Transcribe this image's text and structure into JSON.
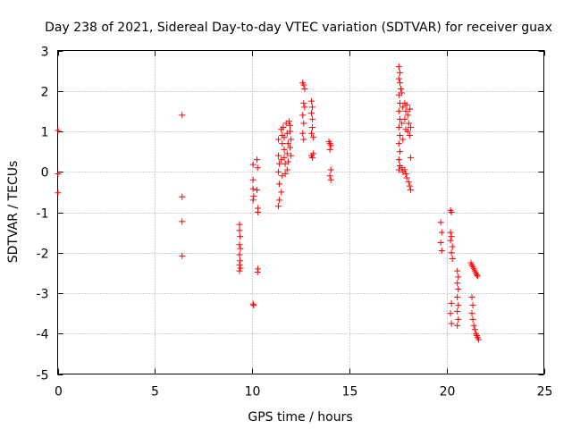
{
  "chart_data": {
    "type": "scatter",
    "title": "Day 238 of 2021, Sidereal Day-to-day VTEC variation (SDTVAR) for receiver guax",
    "xlabel": "GPS time / hours",
    "ylabel": "SDTVAR / TECUs",
    "xlim": [
      0,
      25
    ],
    "ylim": [
      -5,
      3
    ],
    "xticks": [
      0,
      5,
      10,
      15,
      20,
      25
    ],
    "yticks": [
      -5,
      -4,
      -3,
      -2,
      -1,
      0,
      1,
      2,
      3
    ],
    "xtick_labels": [
      "0",
      "5",
      "10",
      "15",
      "20",
      "25"
    ],
    "ytick_labels": [
      "-5",
      "-4",
      "-3",
      "-2",
      "-1",
      "0",
      "1",
      "2",
      "3"
    ],
    "grid": true,
    "marker": "+",
    "colors": {
      "series": "#ff0000",
      "grid": "#a0a0a0",
      "axes": "#000000"
    },
    "series": [
      {
        "name": "SDTVAR",
        "points": [
          [
            0.02,
            1.02
          ],
          [
            0.02,
            -0.05
          ],
          [
            0.02,
            -0.52
          ],
          [
            6.4,
            1.4
          ],
          [
            6.4,
            -0.62
          ],
          [
            6.4,
            -1.23
          ],
          [
            6.4,
            -2.08
          ],
          [
            9.35,
            -1.3
          ],
          [
            9.35,
            -1.45
          ],
          [
            9.38,
            -1.6
          ],
          [
            9.35,
            -1.8
          ],
          [
            9.4,
            -1.9
          ],
          [
            9.35,
            -2.05
          ],
          [
            9.38,
            -2.2
          ],
          [
            9.35,
            -2.3
          ],
          [
            9.4,
            -2.38
          ],
          [
            9.35,
            -2.45
          ],
          [
            10.05,
            0.18
          ],
          [
            10.05,
            -0.2
          ],
          [
            10.05,
            -0.42
          ],
          [
            10.08,
            -0.6
          ],
          [
            10.05,
            -0.7
          ],
          [
            10.05,
            -3.27
          ],
          [
            10.08,
            -3.3
          ],
          [
            10.25,
            0.3
          ],
          [
            10.28,
            0.1
          ],
          [
            10.25,
            -0.45
          ],
          [
            10.3,
            -0.9
          ],
          [
            10.3,
            -1.0
          ],
          [
            10.3,
            -2.4
          ],
          [
            10.28,
            -2.48
          ],
          [
            11.35,
            0.8
          ],
          [
            11.35,
            0.4
          ],
          [
            11.4,
            0.2
          ],
          [
            11.35,
            0.0
          ],
          [
            11.4,
            -0.3
          ],
          [
            11.4,
            -0.7
          ],
          [
            11.35,
            -0.85
          ],
          [
            11.5,
            1.05
          ],
          [
            11.55,
            0.7
          ],
          [
            11.5,
            0.3
          ],
          [
            11.55,
            -0.1
          ],
          [
            11.5,
            -0.5
          ],
          [
            11.55,
            0.9
          ],
          [
            11.6,
            1.1
          ],
          [
            11.65,
            0.85
          ],
          [
            11.65,
            0.55
          ],
          [
            11.7,
            0.2
          ],
          [
            11.7,
            -0.05
          ],
          [
            11.65,
            0.35
          ],
          [
            11.75,
            1.2
          ],
          [
            11.8,
            0.95
          ],
          [
            11.85,
            0.7
          ],
          [
            11.8,
            0.45
          ],
          [
            11.85,
            0.25
          ],
          [
            11.8,
            0.05
          ],
          [
            11.9,
            1.25
          ],
          [
            11.95,
            1.15
          ],
          [
            11.95,
            1.0
          ],
          [
            12.0,
            0.8
          ],
          [
            11.95,
            0.6
          ],
          [
            12.0,
            0.4
          ],
          [
            12.6,
            2.2
          ],
          [
            12.65,
            2.15
          ],
          [
            12.7,
            2.05
          ],
          [
            12.65,
            1.7
          ],
          [
            12.6,
            1.4
          ],
          [
            12.65,
            1.2
          ],
          [
            12.6,
            0.95
          ],
          [
            12.65,
            0.8
          ],
          [
            12.7,
            1.6
          ],
          [
            13.05,
            1.75
          ],
          [
            13.1,
            1.6
          ],
          [
            13.05,
            1.45
          ],
          [
            13.1,
            1.3
          ],
          [
            13.1,
            1.1
          ],
          [
            13.05,
            0.95
          ],
          [
            13.15,
            0.85
          ],
          [
            13.05,
            0.4
          ],
          [
            13.1,
            0.35
          ],
          [
            13.15,
            0.45
          ],
          [
            13.95,
            0.75
          ],
          [
            14.0,
            0.7
          ],
          [
            14.05,
            0.65
          ],
          [
            14.0,
            0.55
          ],
          [
            14.05,
            0.05
          ],
          [
            14.0,
            -0.1
          ],
          [
            14.05,
            -0.2
          ],
          [
            17.55,
            2.6
          ],
          [
            17.6,
            2.45
          ],
          [
            17.55,
            2.3
          ],
          [
            17.6,
            2.2
          ],
          [
            17.65,
            2.05
          ],
          [
            17.55,
            1.9
          ],
          [
            17.6,
            1.7
          ],
          [
            17.55,
            1.5
          ],
          [
            17.6,
            1.3
          ],
          [
            17.55,
            1.1
          ],
          [
            17.6,
            0.9
          ],
          [
            17.55,
            0.7
          ],
          [
            17.6,
            0.5
          ],
          [
            17.55,
            0.3
          ],
          [
            17.6,
            0.15
          ],
          [
            17.55,
            0.05
          ],
          [
            17.7,
            1.95
          ],
          [
            17.75,
            1.6
          ],
          [
            17.7,
            1.2
          ],
          [
            17.75,
            0.8
          ],
          [
            17.7,
            0.1
          ],
          [
            17.75,
            0.0
          ],
          [
            17.85,
            1.7
          ],
          [
            17.9,
            1.5
          ],
          [
            17.85,
            1.3
          ],
          [
            17.9,
            1.05
          ],
          [
            17.85,
            0.05
          ],
          [
            17.9,
            -0.05
          ],
          [
            17.95,
            1.65
          ],
          [
            18.0,
            1.4
          ],
          [
            18.05,
            1.2
          ],
          [
            18.0,
            1.0
          ],
          [
            17.95,
            -0.15
          ],
          [
            18.05,
            -0.25
          ],
          [
            18.1,
            1.55
          ],
          [
            18.15,
            1.1
          ],
          [
            18.1,
            0.9
          ],
          [
            18.15,
            0.35
          ],
          [
            18.1,
            -0.35
          ],
          [
            18.15,
            -0.45
          ],
          [
            19.7,
            -1.25
          ],
          [
            19.75,
            -1.5
          ],
          [
            19.7,
            -1.75
          ],
          [
            19.75,
            -1.95
          ],
          [
            20.2,
            -0.95
          ],
          [
            20.25,
            -1.0
          ],
          [
            20.2,
            -1.5
          ],
          [
            20.25,
            -1.6
          ],
          [
            20.2,
            -1.7
          ],
          [
            20.3,
            -1.85
          ],
          [
            20.25,
            -2.0
          ],
          [
            20.3,
            -2.15
          ],
          [
            20.25,
            -3.25
          ],
          [
            20.2,
            -3.5
          ],
          [
            20.25,
            -3.75
          ],
          [
            20.55,
            -2.45
          ],
          [
            20.6,
            -2.6
          ],
          [
            20.55,
            -2.75
          ],
          [
            20.6,
            -2.9
          ],
          [
            20.55,
            -3.1
          ],
          [
            20.6,
            -3.3
          ],
          [
            20.55,
            -3.45
          ],
          [
            20.6,
            -3.65
          ],
          [
            20.55,
            -3.8
          ],
          [
            21.25,
            -2.25
          ],
          [
            21.3,
            -2.3
          ],
          [
            21.35,
            -2.35
          ],
          [
            21.4,
            -2.4
          ],
          [
            21.45,
            -2.45
          ],
          [
            21.5,
            -2.5
          ],
          [
            21.55,
            -2.55
          ],
          [
            21.6,
            -2.58
          ],
          [
            21.3,
            -3.1
          ],
          [
            21.35,
            -3.3
          ],
          [
            21.3,
            -3.5
          ],
          [
            21.35,
            -3.65
          ],
          [
            21.4,
            -3.8
          ],
          [
            21.45,
            -3.9
          ],
          [
            21.5,
            -4.0
          ],
          [
            21.55,
            -4.05
          ],
          [
            21.6,
            -4.1
          ],
          [
            21.65,
            -4.15
          ]
        ]
      }
    ]
  }
}
